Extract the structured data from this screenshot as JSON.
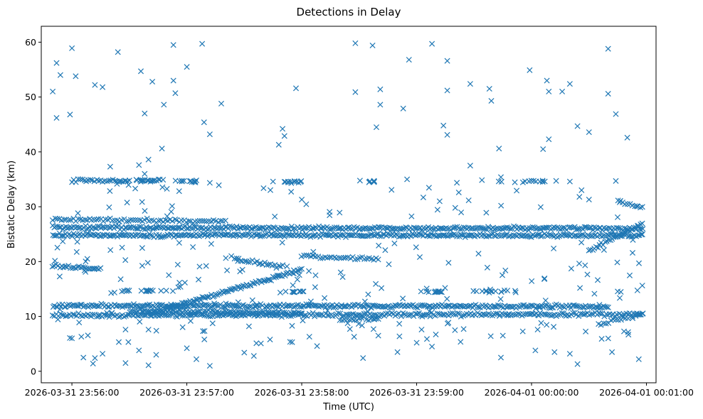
{
  "chart_data": {
    "type": "scatter",
    "title": "Detections in Delay",
    "xlabel": "Time (UTC)",
    "ylabel": "Bistatic Delay (km)",
    "marker": "x",
    "color": "#1f77b4",
    "grid": false,
    "x_tick_labels": [
      "2026-03-31 23:56:00",
      "2026-03-31 23:57:00",
      "2026-03-31 23:58:00",
      "2026-03-31 23:59:00",
      "2026-04-01 00:00:00",
      "2026-04-01 00:01:00"
    ],
    "y_ticks": [
      0,
      10,
      20,
      30,
      40,
      50,
      60
    ],
    "x_range": [
      "2026-03-31 23:55:44",
      "2026-04-01 00:01:05"
    ],
    "ylim": [
      -2.1,
      62.9
    ],
    "data_range": {
      "start": "2026-03-31 23:55:50",
      "end": "2026-04-01 00:00:58"
    },
    "tracks": [
      {
        "from": [
          "2026-03-31 23:55:50",
          24.8
        ],
        "to": [
          "2026-04-01 00:00:58",
          24.8
        ],
        "density": 0.85
      },
      {
        "from": [
          "2026-03-31 23:55:50",
          26.2
        ],
        "to": [
          "2026-04-01 00:00:58",
          26.0
        ],
        "density": 0.85
      },
      {
        "from": [
          "2026-03-31 23:55:50",
          27.6
        ],
        "to": [
          "2026-03-31 23:57:20",
          27.4
        ],
        "density": 0.6
      },
      {
        "from": [
          "2026-03-31 23:55:50",
          12.0
        ],
        "to": [
          "2026-04-01 00:00:40",
          11.8
        ],
        "density": 0.85
      },
      {
        "from": [
          "2026-03-31 23:55:50",
          10.2
        ],
        "to": [
          "2026-04-01 00:00:58",
          10.4
        ],
        "density": 0.75
      },
      {
        "from": [
          "2026-03-31 23:56:30",
          11.0
        ],
        "to": [
          "2026-03-31 23:58:00",
          10.6
        ],
        "density": 0.8
      },
      {
        "from": [
          "2026-03-31 23:56:40",
          10.5
        ],
        "to": [
          "2026-03-31 23:58:00",
          18.5
        ],
        "density": 0.9
      },
      {
        "from": [
          "2026-03-31 23:55:50",
          19.2
        ],
        "to": [
          "2026-03-31 23:56:15",
          18.7
        ],
        "density": 0.8
      },
      {
        "from": [
          "2026-03-31 23:57:25",
          20.5
        ],
        "to": [
          "2026-03-31 23:57:50",
          19.0
        ],
        "density": 0.7
      },
      {
        "from": [
          "2026-03-31 23:56:00",
          34.8
        ],
        "to": [
          "2026-03-31 23:56:30",
          34.6
        ],
        "density": 0.7
      },
      {
        "from": [
          "2026-04-01 00:00:30",
          22.0
        ],
        "to": [
          "2026-04-01 00:00:58",
          27.0
        ],
        "density": 0.8
      },
      {
        "from": [
          "2026-04-01 00:00:45",
          31.0
        ],
        "to": [
          "2026-04-01 00:00:58",
          30.0
        ],
        "density": 0.6
      },
      {
        "from": [
          "2026-04-01 00:00:35",
          8.5
        ],
        "to": [
          "2026-04-01 00:00:58",
          10.5
        ],
        "density": 0.6
      },
      {
        "from": [
          "2026-03-31 23:58:00",
          21.0
        ],
        "to": [
          "2026-03-31 23:58:40",
          20.5
        ],
        "density": 0.6
      },
      {
        "from": [
          "2026-03-31 23:58:20",
          9.5
        ],
        "to": [
          "2026-03-31 23:58:40",
          9.5
        ],
        "density": 0.6
      }
    ],
    "clusters": [
      {
        "t": "2026-03-31 23:56:40",
        "y": 34.8,
        "spread": [
          20,
          0.3
        ],
        "n": 20
      },
      {
        "t": "2026-03-31 23:57:00",
        "y": 34.6,
        "spread": [
          15,
          0.3
        ],
        "n": 12
      },
      {
        "t": "2026-03-31 23:57:55",
        "y": 34.6,
        "spread": [
          15,
          0.3
        ],
        "n": 12
      },
      {
        "t": "2026-03-31 23:58:35",
        "y": 34.6,
        "spread": [
          10,
          0.3
        ],
        "n": 8
      },
      {
        "t": "2026-03-31 23:59:10",
        "y": 14.5,
        "spread": [
          15,
          0.3
        ],
        "n": 10
      },
      {
        "t": "2026-03-31 23:59:40",
        "y": 14.6,
        "spread": [
          25,
          0.4
        ],
        "n": 14
      },
      {
        "t": "2026-04-01 00:00:00",
        "y": 34.6,
        "spread": [
          30,
          0.3
        ],
        "n": 14
      },
      {
        "t": "2026-03-31 23:56:40",
        "y": 14.7,
        "spread": [
          30,
          0.3
        ],
        "n": 14
      },
      {
        "t": "2026-03-31 23:57:55",
        "y": 14.5,
        "spread": [
          20,
          0.3
        ],
        "n": 10
      }
    ],
    "sample_points": [
      [
        "2026-03-31 23:55:50",
        51.0
      ],
      [
        "2026-03-31 23:55:52",
        56.2
      ],
      [
        "2026-03-31 23:55:52",
        46.2
      ],
      [
        "2026-03-31 23:55:54",
        54.0
      ],
      [
        "2026-03-31 23:56:00",
        58.9
      ],
      [
        "2026-03-31 23:56:02",
        53.8
      ],
      [
        "2026-03-31 23:55:59",
        46.8
      ],
      [
        "2026-03-31 23:56:12",
        52.2
      ],
      [
        "2026-03-31 23:56:16",
        51.8
      ],
      [
        "2026-03-31 23:56:24",
        58.2
      ],
      [
        "2026-03-31 23:56:36",
        54.7
      ],
      [
        "2026-03-31 23:56:38",
        47.0
      ],
      [
        "2026-03-31 23:56:42",
        52.8
      ],
      [
        "2026-03-31 23:56:48",
        48.6
      ],
      [
        "2026-03-31 23:56:47",
        40.6
      ],
      [
        "2026-03-31 23:56:53",
        59.5
      ],
      [
        "2026-03-31 23:56:53",
        53.0
      ],
      [
        "2026-03-31 23:56:54",
        50.7
      ],
      [
        "2026-03-31 23:57:00",
        55.5
      ],
      [
        "2026-03-31 23:57:08",
        59.7
      ],
      [
        "2026-03-31 23:57:09",
        45.4
      ],
      [
        "2026-03-31 23:57:12",
        43.2
      ],
      [
        "2026-03-31 23:57:18",
        48.8
      ],
      [
        "2026-03-31 23:57:48",
        41.3
      ],
      [
        "2026-03-31 23:57:50",
        44.2
      ],
      [
        "2026-03-31 23:57:51",
        42.9
      ],
      [
        "2026-03-31 23:57:57",
        51.6
      ],
      [
        "2026-03-31 23:58:28",
        59.8
      ],
      [
        "2026-03-31 23:58:28",
        50.9
      ],
      [
        "2026-03-31 23:58:37",
        59.4
      ],
      [
        "2026-03-31 23:58:41",
        51.4
      ],
      [
        "2026-03-31 23:58:41",
        48.6
      ],
      [
        "2026-03-31 23:58:39",
        44.5
      ],
      [
        "2026-03-31 23:58:53",
        47.9
      ],
      [
        "2026-03-31 23:58:56",
        56.8
      ],
      [
        "2026-03-31 23:59:08",
        59.7
      ],
      [
        "2026-03-31 23:59:14",
        44.8
      ],
      [
        "2026-03-31 23:59:16",
        56.6
      ],
      [
        "2026-03-31 23:59:16",
        51.2
      ],
      [
        "2026-03-31 23:59:16",
        43.1
      ],
      [
        "2026-03-31 23:59:28",
        52.4
      ],
      [
        "2026-03-31 23:59:38",
        51.5
      ],
      [
        "2026-03-31 23:59:39",
        49.3
      ],
      [
        "2026-03-31 23:59:43",
        40.6
      ],
      [
        "2026-03-31 23:59:59",
        54.9
      ],
      [
        "2026-04-01 00:00:08",
        53.0
      ],
      [
        "2026-04-01 00:00:09",
        51.0
      ],
      [
        "2026-04-01 00:00:16",
        51.0
      ],
      [
        "2026-04-01 00:00:20",
        52.4
      ],
      [
        "2026-04-01 00:00:24",
        44.7
      ],
      [
        "2026-04-01 00:00:30",
        43.6
      ],
      [
        "2026-04-01 00:00:06",
        40.5
      ],
      [
        "2026-04-01 00:00:09",
        42.3
      ],
      [
        "2026-04-01 00:00:40",
        58.8
      ],
      [
        "2026-04-01 00:00:40",
        50.6
      ],
      [
        "2026-04-01 00:00:44",
        46.9
      ],
      [
        "2026-04-01 00:00:50",
        42.6
      ],
      [
        "2026-03-31 23:56:06",
        2.5
      ],
      [
        "2026-03-31 23:56:11",
        1.4
      ],
      [
        "2026-03-31 23:56:12",
        2.4
      ],
      [
        "2026-03-31 23:56:16",
        3.2
      ],
      [
        "2026-03-31 23:56:28",
        1.5
      ],
      [
        "2026-03-31 23:56:35",
        3.8
      ],
      [
        "2026-03-31 23:56:40",
        1.1
      ],
      [
        "2026-03-31 23:56:44",
        3.0
      ],
      [
        "2026-03-31 23:57:00",
        4.2
      ],
      [
        "2026-03-31 23:57:05",
        2.2
      ],
      [
        "2026-03-31 23:57:12",
        1.0
      ],
      [
        "2026-03-31 23:57:30",
        3.4
      ],
      [
        "2026-03-31 23:57:35",
        2.8
      ],
      [
        "2026-03-31 23:57:55",
        5.3
      ],
      [
        "2026-03-31 23:58:04",
        6.3
      ],
      [
        "2026-03-31 23:58:08",
        4.6
      ],
      [
        "2026-03-31 23:58:32",
        2.4
      ],
      [
        "2026-03-31 23:58:50",
        3.5
      ],
      [
        "2026-03-31 23:59:00",
        5.2
      ],
      [
        "2026-03-31 23:59:08",
        4.5
      ],
      [
        "2026-03-31 23:59:44",
        2.5
      ],
      [
        "2026-04-01 00:00:02",
        3.8
      ],
      [
        "2026-04-01 00:00:12",
        3.5
      ],
      [
        "2026-04-01 00:00:20",
        3.2
      ],
      [
        "2026-04-01 00:00:24",
        1.3
      ],
      [
        "2026-04-01 00:00:42",
        3.5
      ],
      [
        "2026-04-01 00:00:56",
        2.2
      ],
      [
        "2026-03-31 23:56:00",
        6.0
      ],
      [
        "2026-03-31 23:56:28",
        7.6
      ],
      [
        "2026-03-31 23:56:40",
        7.6
      ],
      [
        "2026-03-31 23:58:40",
        6.5
      ],
      [
        "2026-03-31 23:59:10",
        6.7
      ],
      [
        "2026-03-31 23:59:20",
        7.5
      ],
      [
        "2026-03-31 23:59:45",
        6.5
      ],
      [
        "2026-04-01 00:00:05",
        8.8
      ],
      [
        "2026-03-31 23:56:40",
        38.6
      ],
      [
        "2026-03-31 23:56:38",
        36.0
      ],
      [
        "2026-03-31 23:56:35",
        37.6
      ],
      [
        "2026-03-31 23:56:20",
        37.3
      ],
      [
        "2026-03-31 23:57:05",
        34.8
      ],
      [
        "2026-03-31 23:57:45",
        34.6
      ],
      [
        "2026-03-31 23:58:00",
        31.3
      ],
      [
        "2026-03-31 23:58:55",
        35.0
      ],
      [
        "2026-03-31 23:59:12",
        31.0
      ],
      [
        "2026-03-31 23:59:22",
        32.6
      ],
      [
        "2026-03-31 23:59:28",
        37.5
      ],
      [
        "2026-03-31 23:59:44",
        35.4
      ],
      [
        "2026-04-01 00:00:20",
        34.6
      ],
      [
        "2026-04-01 00:00:25",
        31.8
      ],
      [
        "2026-04-01 00:00:30",
        31.3
      ],
      [
        "2026-04-01 00:00:44",
        34.7
      ],
      [
        "2026-04-01 00:00:46",
        30.8
      ],
      [
        "2026-04-01 00:00:55",
        30.1
      ]
    ]
  }
}
